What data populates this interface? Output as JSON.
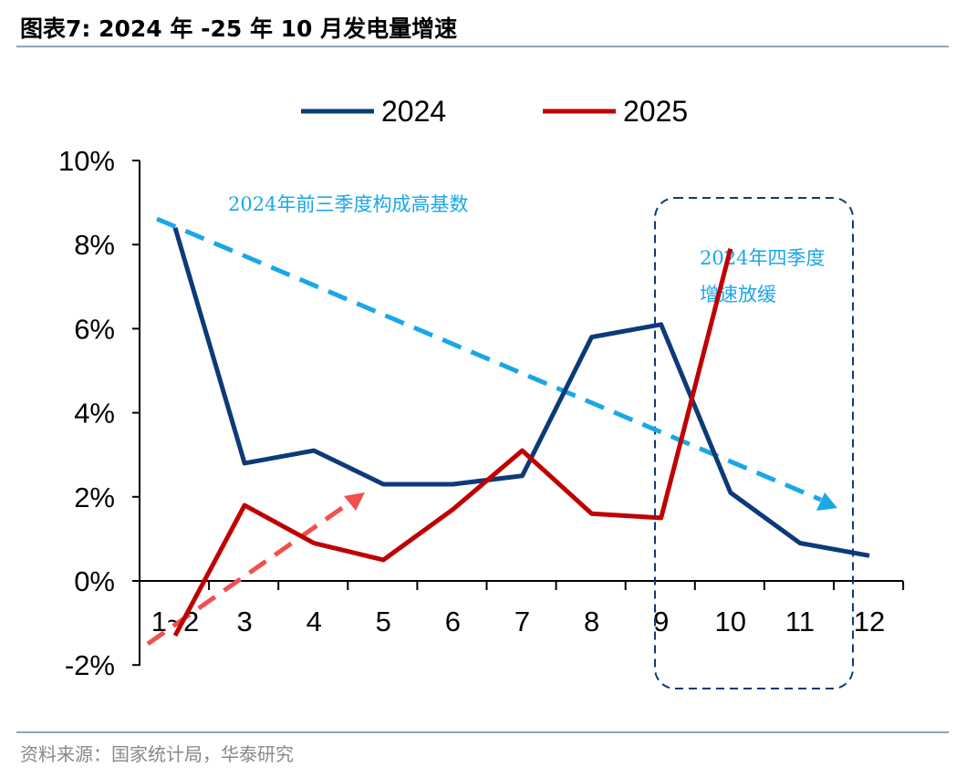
{
  "title": "图表7:  2024 年 -25 年 10 月发电量增速",
  "source": "资料来源：国家统计局，华泰研究",
  "chart_data": {
    "type": "line",
    "categories": [
      "1~2",
      "3",
      "4",
      "5",
      "6",
      "7",
      "8",
      "9",
      "10",
      "11",
      "12"
    ],
    "series": [
      {
        "name": "2024",
        "color": "#0d3a78",
        "values": [
          8.4,
          2.8,
          3.1,
          2.3,
          2.3,
          2.5,
          5.8,
          6.1,
          2.1,
          0.9,
          0.6
        ]
      },
      {
        "name": "2025",
        "color": "#c00000",
        "values": [
          -1.3,
          1.8,
          0.9,
          0.5,
          1.7,
          3.1,
          1.6,
          1.5,
          7.9,
          null,
          null
        ]
      }
    ],
    "yticks": [
      "-2%",
      "0%",
      "2%",
      "4%",
      "6%",
      "8%",
      "10%"
    ],
    "ylim": [
      -2,
      10
    ],
    "legend": "top",
    "annotations": {
      "trend_text": "2024年前三季度构成高基数",
      "box_text_1": "2024年四季度",
      "box_text_2": "增速放缓",
      "trend_color": "#1aa7e8",
      "rise_color": "#f05050"
    }
  }
}
